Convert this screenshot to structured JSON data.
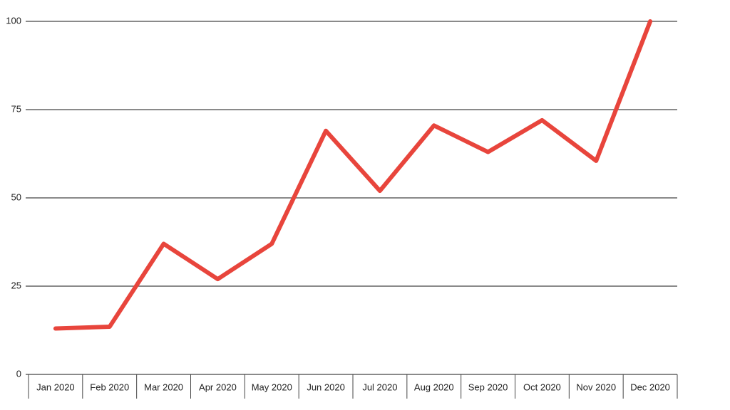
{
  "chart_data": {
    "type": "line",
    "categories": [
      "Jan 2020",
      "Feb 2020",
      "Mar 2020",
      "Apr 2020",
      "May 2020",
      "Jun 2020",
      "Jul 2020",
      "Aug 2020",
      "Sep 2020",
      "Oct 2020",
      "Nov 2020",
      "Dec 2020"
    ],
    "values": [
      13,
      13.5,
      37,
      27,
      37,
      69,
      52,
      70.5,
      63,
      72,
      60.5,
      100
    ],
    "color": "#e8453c",
    "ylim": [
      0,
      100
    ],
    "yticks": [
      0,
      25,
      50,
      75,
      100
    ],
    "grid": true
  }
}
